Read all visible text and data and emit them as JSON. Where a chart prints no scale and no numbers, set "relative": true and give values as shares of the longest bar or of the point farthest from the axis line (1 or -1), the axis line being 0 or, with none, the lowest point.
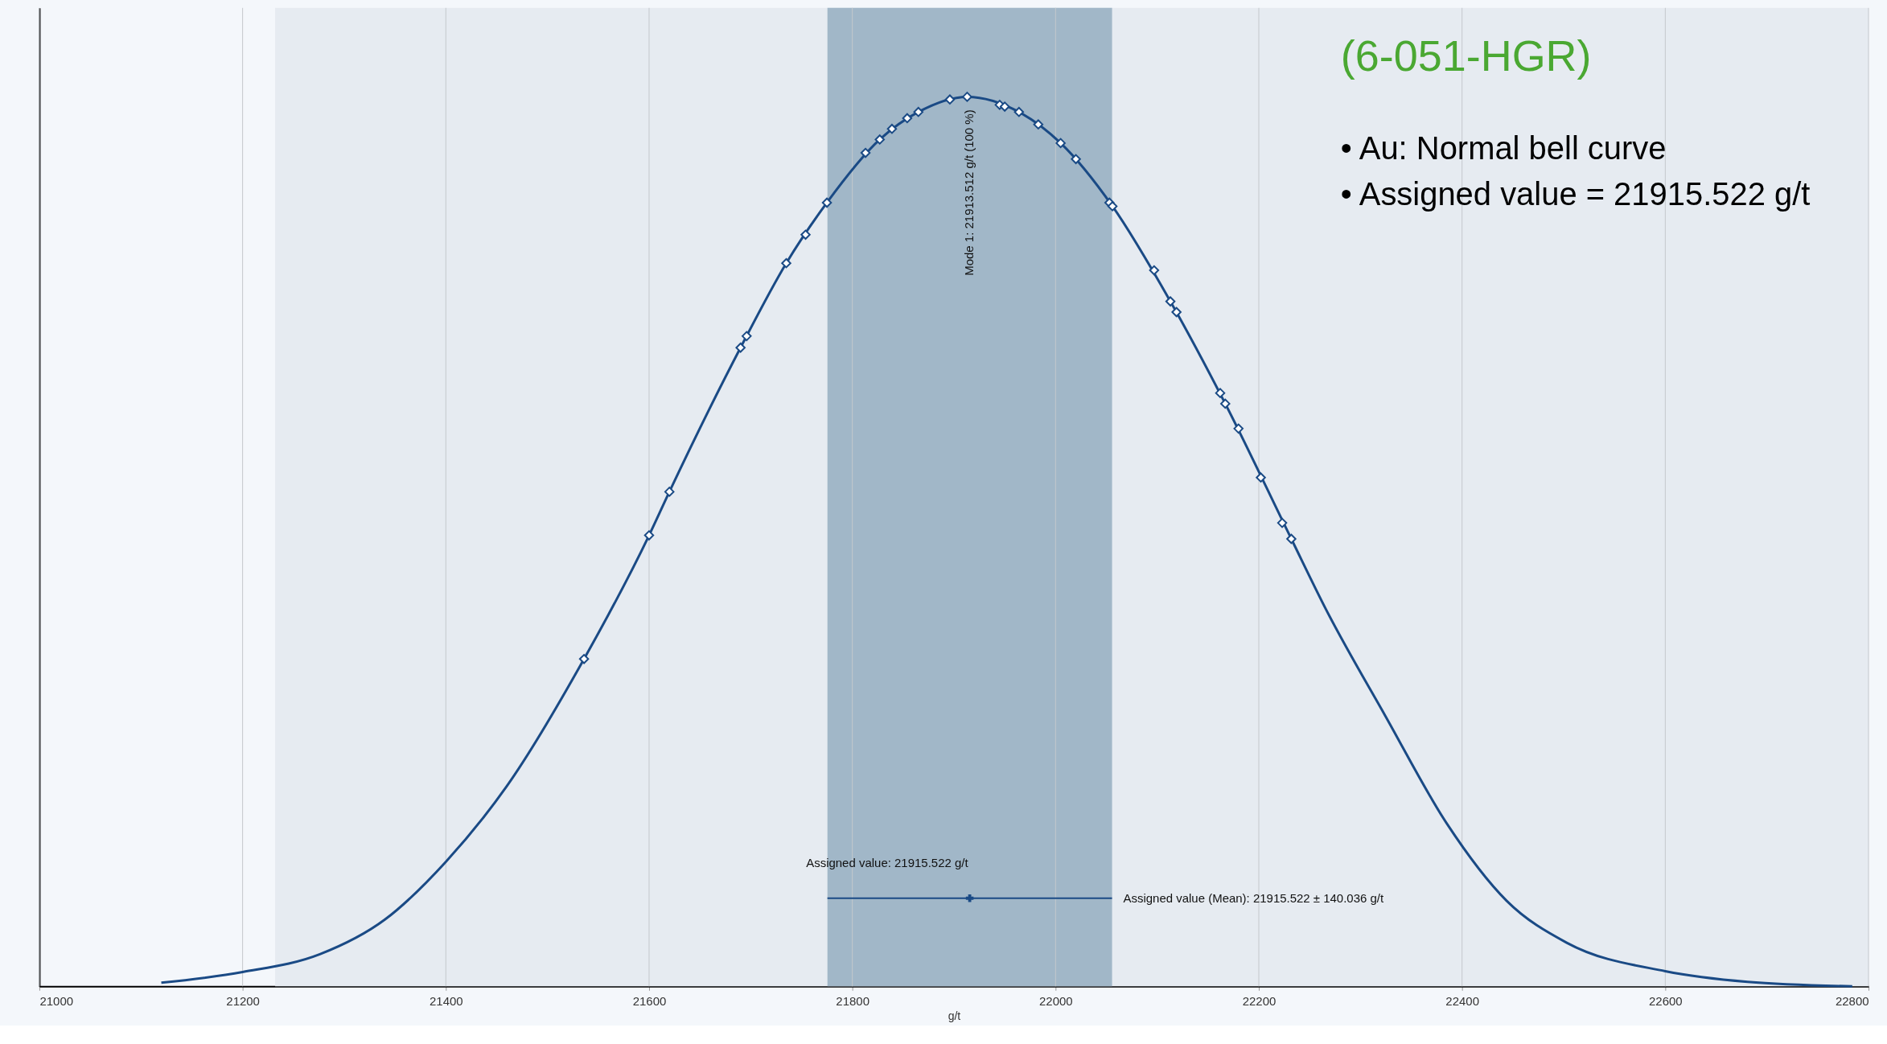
{
  "chart_data": {
    "type": "line",
    "title": "(6-051-HGR)",
    "xlabel": "g/t",
    "relative": true,
    "xlim": [
      21000,
      22800
    ],
    "xticks": [
      {
        "value": 21000,
        "label": "21000"
      },
      {
        "value": 21200,
        "label": "21200"
      },
      {
        "value": 21400,
        "label": "21400"
      },
      {
        "value": 21600,
        "label": "21600"
      },
      {
        "value": 21800,
        "label": "21800"
      },
      {
        "value": 22000,
        "label": "22000"
      },
      {
        "value": 22200,
        "label": "22200"
      },
      {
        "value": 22400,
        "label": "22400"
      },
      {
        "value": 22600,
        "label": "22600"
      },
      {
        "value": 22800,
        "label": "22800"
      }
    ],
    "grid": "x",
    "line_style": "solid",
    "bands": [
      {
        "axis": "x",
        "from": 21232,
        "to": 22800,
        "color": "#e6ebf1"
      },
      {
        "axis": "x",
        "from": 21775.5,
        "to": 22055.6,
        "color": "#a1b7c8"
      }
    ],
    "series": [
      {
        "color": "#1a4a85",
        "marker": "none",
        "x": [
          21120,
          21200,
          21276,
          21340,
          21400,
          21460,
          21536,
          21600,
          21620,
          21690,
          21735,
          21775,
          21827,
          21865,
          21913,
          21964,
          22005,
          22056,
          22113,
          22167,
          22232,
          22266,
          22325,
          22385,
          22444,
          22503,
          22600,
          22681,
          22784
        ],
        "values": [
          0.004,
          0.016,
          0.036,
          0.075,
          0.14,
          0.225,
          0.368,
          0.507,
          0.556,
          0.718,
          0.813,
          0.881,
          0.952,
          0.983,
          1.0,
          0.983,
          0.948,
          0.877,
          0.77,
          0.655,
          0.503,
          0.424,
          0.303,
          0.183,
          0.096,
          0.049,
          0.017,
          0.005,
          0.0
        ]
      },
      {
        "type": "scatter",
        "color": "#1a4a85",
        "marker": "diamond",
        "x": [
          21536,
          21600,
          21620,
          21690,
          21696,
          21735,
          21754,
          21775,
          21813,
          21827,
          21839,
          21854,
          21865,
          21896,
          21913,
          21945,
          21950,
          21964,
          21983,
          22005,
          22020,
          22053,
          22056,
          22097,
          22113,
          22119,
          22162,
          22167,
          22180,
          22202,
          22223,
          22232
        ],
        "values": [
          0.368,
          0.507,
          0.556,
          0.718,
          0.731,
          0.813,
          0.845,
          0.881,
          0.937,
          0.952,
          0.964,
          0.976,
          0.983,
          0.997,
          1.0,
          0.991,
          0.989,
          0.983,
          0.969,
          0.948,
          0.93,
          0.881,
          0.877,
          0.805,
          0.77,
          0.758,
          0.667,
          0.655,
          0.627,
          0.572,
          0.521,
          0.503
        ]
      },
      {
        "type": "scatter",
        "color": "#1a4a85",
        "marker": "cross",
        "x": [
          21915.522
        ],
        "values": [
          0.099
        ],
        "xerrors": [
          140.036
        ]
      }
    ],
    "annotations": [
      {
        "text": "Mode 1: 21913.512 g/t (100 %)",
        "x": 21913.512,
        "y": 1.0
      },
      {
        "text": "Assigned value: 21915.522 g/t",
        "x": 21915.522,
        "y": 0.099
      },
      {
        "text": "Assigned value (Mean): 21915.522 ± 140.036 g/t",
        "x": 22055.558,
        "y": 0.099
      },
      "•   Au: Normal bell curve",
      "•   Assigned value = 21915.522 g/t"
    ]
  }
}
